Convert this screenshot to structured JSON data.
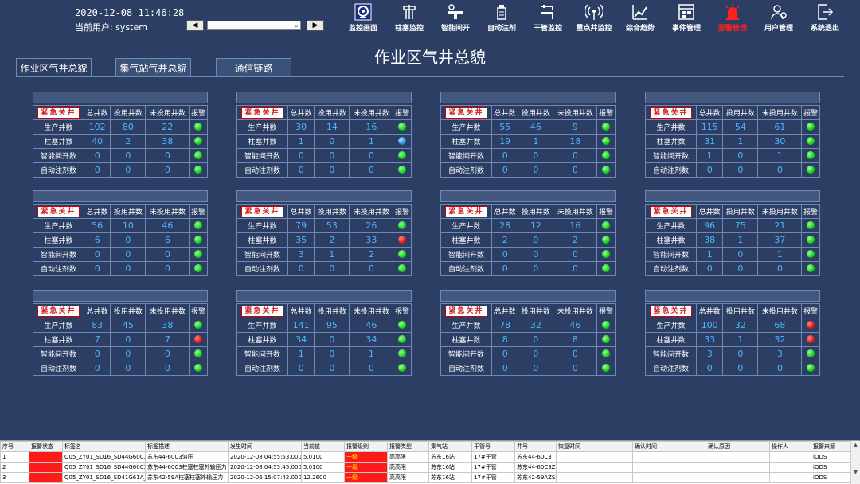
{
  "header": {
    "datetime": "2020-12-08 11:46:28",
    "current_user": "当前用户: system",
    "prev_label": "◀",
    "next_label": "▶",
    "search_glyph": "⌕"
  },
  "toolbar": [
    {
      "label": "监控画面",
      "icon": "monitor-icon",
      "active": true
    },
    {
      "label": "柱塞监控",
      "icon": "plunger-icon"
    },
    {
      "label": "智能间开",
      "icon": "valve-icon"
    },
    {
      "label": "自动注剂",
      "icon": "injector-icon"
    },
    {
      "label": "干管监控",
      "icon": "pipe-icon"
    },
    {
      "label": "重点井监控",
      "icon": "wireless-icon"
    },
    {
      "label": "综合趋势",
      "icon": "trend-icon"
    },
    {
      "label": "事件管理",
      "icon": "event-icon"
    },
    {
      "label": "报警管理",
      "icon": "alarm-icon",
      "color": "#ff2020"
    },
    {
      "label": "用户管理",
      "icon": "user-icon"
    },
    {
      "label": "系统退出",
      "icon": "exit-icon"
    }
  ],
  "page_title": "作业区气井总貌",
  "tabs": [
    {
      "label": "作业区气井总貌",
      "active": true
    },
    {
      "label": "集气站气井总貌"
    },
    {
      "label": "通信链路"
    }
  ],
  "station_table_headers": {
    "emergency": "紧急关井",
    "total": "总井数",
    "in_use": "投用井数",
    "not_in_use": "未投用井数",
    "alarm": "报警"
  },
  "row_labels": [
    "生产井数",
    "柱塞井数",
    "智能间开数",
    "自动注剂数"
  ],
  "stations": [
    {
      "rows": [
        [
          102,
          80,
          22,
          "green"
        ],
        [
          40,
          2,
          38,
          "green"
        ],
        [
          0,
          0,
          0,
          "green"
        ],
        [
          0,
          0,
          0,
          "green"
        ]
      ]
    },
    {
      "rows": [
        [
          30,
          14,
          16,
          "green"
        ],
        [
          1,
          0,
          1,
          "blue"
        ],
        [
          0,
          0,
          0,
          "green"
        ],
        [
          0,
          0,
          0,
          "green"
        ]
      ]
    },
    {
      "rows": [
        [
          55,
          46,
          9,
          "green"
        ],
        [
          19,
          1,
          18,
          "green"
        ],
        [
          0,
          0,
          0,
          "green"
        ],
        [
          0,
          0,
          0,
          "green"
        ]
      ]
    },
    {
      "rows": [
        [
          115,
          54,
          61,
          "green"
        ],
        [
          31,
          1,
          30,
          "green"
        ],
        [
          1,
          0,
          1,
          "green"
        ],
        [
          0,
          0,
          0,
          "green"
        ]
      ]
    },
    {
      "rows": [
        [
          56,
          10,
          46,
          "green"
        ],
        [
          6,
          0,
          6,
          "green"
        ],
        [
          0,
          0,
          0,
          "green"
        ],
        [
          0,
          0,
          0,
          "green"
        ]
      ]
    },
    {
      "rows": [
        [
          79,
          53,
          26,
          "green"
        ],
        [
          35,
          2,
          33,
          "red"
        ],
        [
          3,
          1,
          2,
          "green"
        ],
        [
          0,
          0,
          0,
          "green"
        ]
      ]
    },
    {
      "rows": [
        [
          28,
          12,
          16,
          "green"
        ],
        [
          2,
          0,
          2,
          "green"
        ],
        [
          0,
          0,
          0,
          "green"
        ],
        [
          0,
          0,
          0,
          "green"
        ]
      ]
    },
    {
      "rows": [
        [
          96,
          75,
          21,
          "green"
        ],
        [
          38,
          1,
          37,
          "green"
        ],
        [
          1,
          0,
          1,
          "green"
        ],
        [
          0,
          0,
          0,
          "green"
        ]
      ]
    },
    {
      "rows": [
        [
          83,
          45,
          38,
          "green"
        ],
        [
          7,
          0,
          7,
          "red"
        ],
        [
          0,
          0,
          0,
          "green"
        ],
        [
          0,
          0,
          0,
          "green"
        ]
      ]
    },
    {
      "rows": [
        [
          141,
          95,
          46,
          "green"
        ],
        [
          34,
          0,
          34,
          "green"
        ],
        [
          1,
          0,
          1,
          "green"
        ],
        [
          0,
          0,
          0,
          "green"
        ]
      ]
    },
    {
      "rows": [
        [
          78,
          32,
          46,
          "green"
        ],
        [
          8,
          0,
          8,
          "green"
        ],
        [
          0,
          0,
          0,
          "green"
        ],
        [
          0,
          0,
          0,
          "green"
        ]
      ]
    },
    {
      "rows": [
        [
          100,
          32,
          68,
          "red"
        ],
        [
          33,
          1,
          32,
          "red"
        ],
        [
          3,
          0,
          3,
          "green"
        ],
        [
          0,
          0,
          0,
          "green"
        ]
      ]
    }
  ],
  "alarm_table": {
    "columns": [
      "序号",
      "报警状态",
      "标签名",
      "标签描述",
      "发生时间",
      "当前值",
      "报警级别",
      "报警类型",
      "集气站",
      "干管号",
      "井号",
      "恢复时间",
      "确认时间",
      "确认原因",
      "操作人",
      "报警来源"
    ],
    "rows": [
      [
        "1",
        "",
        "Q05_ZY01_SD16_SD44G60C3_...",
        "苏东44-60C3油压",
        "2020-12-08 04:55:53.000",
        "5.0100",
        "一级",
        "高高限",
        "苏东16站",
        "17#干管",
        "苏东44-60C3",
        "",
        "",
        "",
        "",
        "iODS"
      ],
      [
        "2",
        "",
        "Q05_ZY01_SD16_SD44G60C3_...",
        "苏东44-60C3柱塞柱塞外输压力",
        "2020-12-08 04:55:45.000",
        "5.0100",
        "一级",
        "高高限",
        "苏东16站",
        "17#干管",
        "苏东44-60C3ZS",
        "",
        "",
        "",
        "",
        "iODS"
      ],
      [
        "3",
        "",
        "Q05_ZY01_SD16_SD41G61A_0...",
        "苏东42-59A柱塞柱塞外输压力",
        "2020-12-06 15:07:42.000",
        "12.2600",
        "一级",
        "高高限",
        "苏东16站",
        "17#干管",
        "苏东42-59AZS",
        "",
        "",
        "",
        "",
        "iODS"
      ]
    ]
  },
  "colors": {
    "background": "#2c3e63",
    "value_text": "#4cb7ff",
    "alarm_red": "#ff1a1a",
    "led_green": "#17d017",
    "led_red": "#e51717",
    "led_blue": "#2a8bde"
  }
}
